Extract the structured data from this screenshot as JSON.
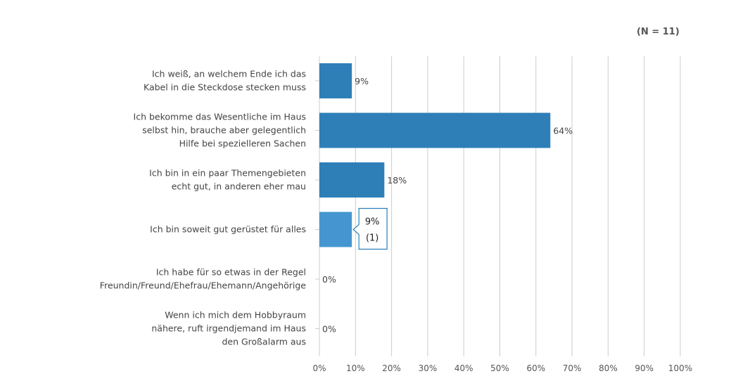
{
  "sample_size_label": "(N = 11)",
  "chart_data": {
    "type": "bar",
    "orientation": "horizontal",
    "categories": [
      [
        "Ich weiß, an welchem Ende ich das",
        "Kabel in die Steckdose stecken muss"
      ],
      [
        "Ich bekomme das Wesentliche im Haus",
        "selbst hin, brauche aber gelegentlich",
        "Hilfe bei spezielleren Sachen"
      ],
      [
        "Ich bin in ein paar Themengebieten",
        "echt gut, in anderen eher mau"
      ],
      [
        "Ich bin soweit gut gerüstet für alles"
      ],
      [
        "Ich habe für so etwas in der Regel",
        "Freundin/Freund/Ehefrau/Ehemann/Angehörige"
      ],
      [
        "Wenn ich mich dem Hobbyraum",
        "nähere, ruft irgendjemand im Haus",
        "den Großalarm aus"
      ]
    ],
    "values": [
      9,
      64,
      18,
      9,
      0,
      0
    ],
    "data_labels": [
      "9%",
      "64%",
      "18%",
      "9%",
      "0%",
      "0%"
    ],
    "xlim": [
      0,
      100
    ],
    "x_ticks": [
      "0%",
      "10%",
      "20%",
      "30%",
      "40%",
      "50%",
      "60%",
      "70%",
      "80%",
      "90%",
      "100%"
    ],
    "grid": true,
    "highlighted_index": 3,
    "tooltip": {
      "value": "9%",
      "count": "(1)"
    },
    "colors": {
      "bar": "#2e7fb8",
      "highlight": "#4596d0",
      "grid": "#cccccc",
      "text": "#444444"
    }
  }
}
